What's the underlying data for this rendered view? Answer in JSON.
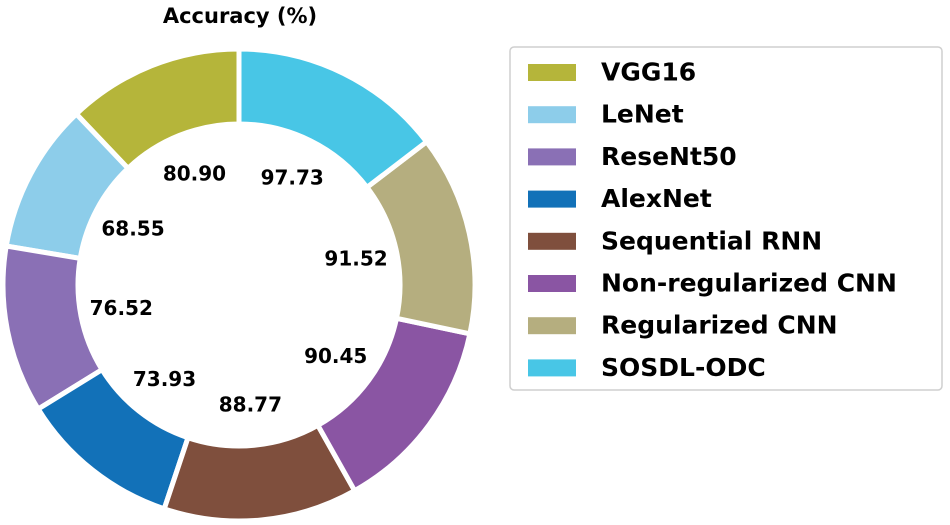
{
  "chart_data": {
    "type": "pie",
    "title": "Accuracy (%)",
    "legend_position": "right",
    "categories": [
      "VGG16",
      "LeNet",
      "ReseNt50",
      "AlexNet",
      "Sequential RNN",
      "Non-regularized CNN",
      "Regularized CNN",
      "SOSDL-ODC"
    ],
    "values": [
      80.9,
      68.55,
      76.52,
      73.93,
      88.77,
      90.45,
      91.52,
      97.73
    ],
    "value_labels": [
      "80.90",
      "68.55",
      "76.52",
      "73.93",
      "88.77",
      "90.45",
      "91.52",
      "97.73"
    ],
    "colors": [
      "#B5B53A",
      "#8DCDEA",
      "#8A70B5",
      "#1271B8",
      "#7F4F3D",
      "#8A55A3",
      "#B5AE7F",
      "#48C6E6"
    ]
  }
}
